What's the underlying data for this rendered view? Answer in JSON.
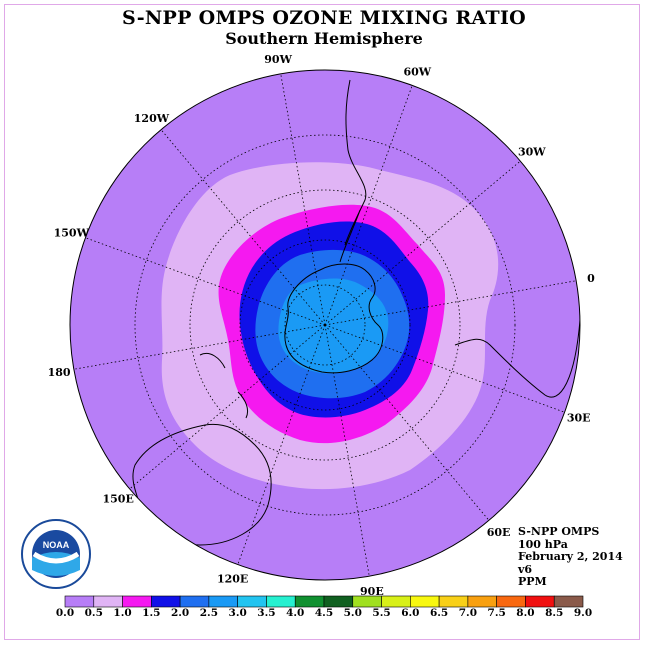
{
  "title": "S-NPP OMPS OZONE MIXING RATIO",
  "subtitle": "Southern Hemisphere",
  "longitude_labels": [
    "90W",
    "60W",
    "30W",
    "0",
    "30E",
    "60E",
    "90E",
    "120E",
    "150E",
    "180",
    "150W",
    "120W"
  ],
  "info": {
    "instrument": "S-NPP OMPS",
    "pressure": "100 hPa",
    "date": "February 2, 2014",
    "version": "v6",
    "units": "PPM"
  },
  "logo_text": "NOAA",
  "colorbar": {
    "ticks": [
      "0.0",
      "0.5",
      "1.0",
      "1.5",
      "2.0",
      "2.5",
      "3.0",
      "3.5",
      "4.0",
      "4.5",
      "5.0",
      "5.5",
      "6.0",
      "6.5",
      "7.0",
      "7.5",
      "8.0",
      "8.5",
      "9.0"
    ],
    "colors": [
      "#b77ef7",
      "#e0b4f5",
      "#f519f0",
      "#1010e8",
      "#1f6ff0",
      "#1a9af5",
      "#22c4f0",
      "#26f0d0",
      "#109030",
      "#106020",
      "#a0e020",
      "#d8f018",
      "#f8f810",
      "#f8d018",
      "#f8a010",
      "#f86810",
      "#f01010",
      "#8a5a4a"
    ]
  },
  "colors": {
    "band_0_0.5": "#b77ef7",
    "band_0.5_1.0": "#e0b4f5",
    "band_1.0_1.5": "#f519f0",
    "band_1.5_2.0": "#1010e8",
    "band_2.0_2.5": "#1f6ff0",
    "band_2.5_3.0": "#1a9af5",
    "frame": "#e0a8e8"
  }
}
